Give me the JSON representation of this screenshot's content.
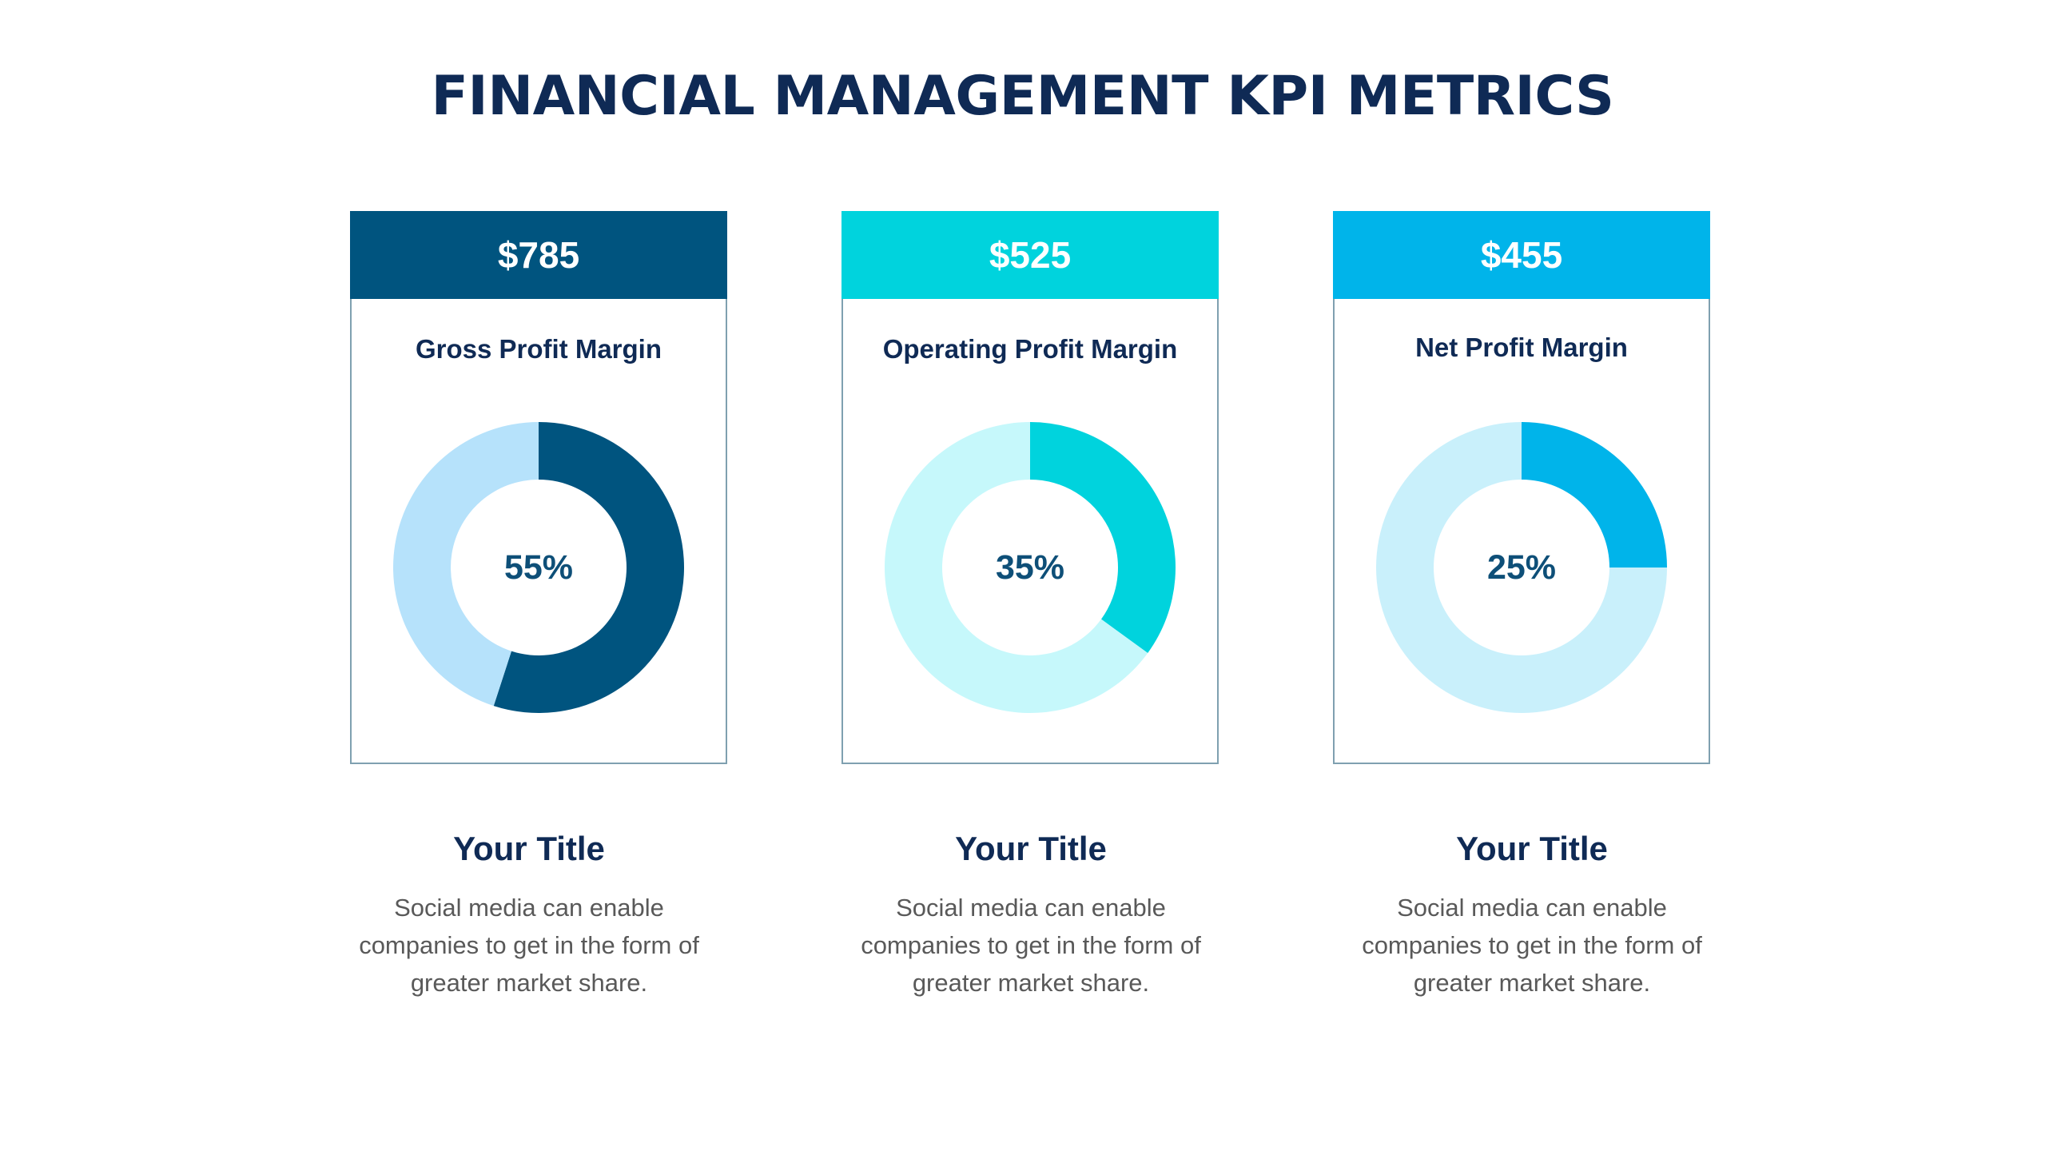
{
  "title": "FINANCIAL MANAGEMENT KPI METRICS",
  "cards": [
    {
      "amount": "$785",
      "label": "Gross Profit Margin",
      "percent_text": "55%",
      "header_color": "#00547f",
      "filled_color": "#00547f",
      "remaining_color": "#b6e2fb"
    },
    {
      "amount": "$525",
      "label": "Operating Profit Margin",
      "percent_text": "35%",
      "header_color": "#00d3dd",
      "filled_color": "#00d3dd",
      "remaining_color": "#c6f8fb"
    },
    {
      "amount": "$455",
      "label": "Net Profit Margin",
      "percent_text": "25%",
      "header_color": "#00b4ea",
      "filled_color": "#00b4ea",
      "remaining_color": "#c9f0fb"
    }
  ],
  "info": [
    {
      "title": "Your Title",
      "lines": [
        "Social media can enable",
        "companies to get in the form of",
        "greater market share."
      ]
    },
    {
      "title": "Your Title",
      "lines": [
        "Social media can enable",
        "companies to get in the form of",
        "greater market share."
      ]
    },
    {
      "title": "Your Title",
      "lines": [
        "Social media can enable",
        "companies to get in the form of",
        "greater market share."
      ]
    }
  ],
  "chart_data": [
    {
      "type": "pie",
      "variant": "donut",
      "title": "Gross Profit Margin",
      "slices": [
        {
          "label": "filled",
          "value": 55,
          "color": "#00547f"
        },
        {
          "label": "remaining",
          "value": 45,
          "color": "#b6e2fb"
        }
      ]
    },
    {
      "type": "pie",
      "variant": "donut",
      "title": "Operating Profit Margin",
      "slices": [
        {
          "label": "filled",
          "value": 35,
          "color": "#00d3dd"
        },
        {
          "label": "remaining",
          "value": 65,
          "color": "#c6f8fb"
        }
      ]
    },
    {
      "type": "pie",
      "variant": "donut",
      "title": "Net Profit Margin",
      "slices": [
        {
          "label": "filled",
          "value": 25,
          "color": "#00b4ea"
        },
        {
          "label": "remaining",
          "value": 75,
          "color": "#c9f0fb"
        }
      ]
    }
  ]
}
